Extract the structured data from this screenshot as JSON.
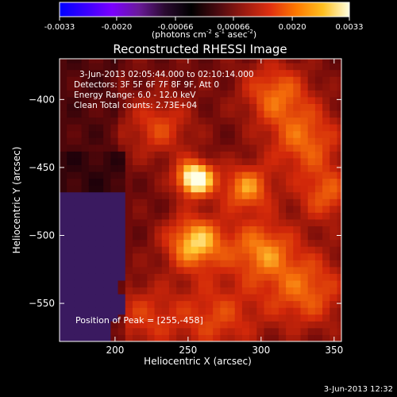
{
  "colorbar": {
    "ticks": [
      "-0.0033",
      "-0.0020",
      "-0.00066",
      "0.00066",
      "0.0020",
      "0.0033"
    ],
    "tick_values": [
      -0.0033,
      -0.002,
      -0.00066,
      0.00066,
      0.002,
      0.0033
    ],
    "units_text": "(photons cm",
    "units_exp1": "-2",
    "units_mid": " s",
    "units_exp2": "-1",
    "units_end": " asec",
    "units_exp3": "-2",
    "units_close": ")",
    "stops": [
      "#0000ff",
      "#3a00ff",
      "#7b00ff",
      "#6a1a9a",
      "#2a0a30",
      "#000000",
      "#4a0a10",
      "#9a1a10",
      "#e03010",
      "#ff7a00",
      "#ffc020",
      "#ffffe0"
    ]
  },
  "chart_data": {
    "type": "heatmap",
    "title": "Reconstructed RHESSI Image",
    "xlabel": "Heliocentric X (arcsec)",
    "ylabel": "Heliocentric Y (arcsec)",
    "xlim": [
      162,
      355
    ],
    "ylim": [
      -578,
      -370
    ],
    "xticks": [
      200,
      250,
      300,
      350
    ],
    "yticks": [
      -550,
      -500,
      -450,
      -400
    ],
    "xtick_labels": [
      "200",
      "250",
      "300",
      "350"
    ],
    "ytick_labels": [
      "−550",
      "−500",
      "−450",
      "−400"
    ],
    "annotations": [
      "3-Jun-2013 02:05:44.000 to 02:10:14.000",
      "Detectors: 3F 5F 6F 7F 8F 9F, Att 0",
      "Energy Range: 6.0 - 12.0 keV",
      "Clean     Total counts: 2.73E+04"
    ],
    "peak_label": "Position of Peak = [255,-458]",
    "peak": [
      255,
      -458
    ],
    "sources": [
      {
        "x": 255,
        "y": -458,
        "sigma": 9,
        "amp": 1.0
      },
      {
        "x": 255,
        "y": -505,
        "sigma": 14,
        "amp": 0.7
      },
      {
        "x": 290,
        "y": -465,
        "sigma": 12,
        "amp": 0.55
      },
      {
        "x": 300,
        "y": -510,
        "sigma": 16,
        "amp": 0.5
      },
      {
        "x": 330,
        "y": -430,
        "sigma": 18,
        "amp": 0.45
      },
      {
        "x": 310,
        "y": -395,
        "sigma": 16,
        "amp": 0.45
      },
      {
        "x": 230,
        "y": -420,
        "sigma": 16,
        "amp": 0.35
      },
      {
        "x": 330,
        "y": -540,
        "sigma": 20,
        "amp": 0.45
      },
      {
        "x": 270,
        "y": -560,
        "sigma": 20,
        "amp": 0.35
      },
      {
        "x": 220,
        "y": -560,
        "sigma": 18,
        "amp": 0.3
      },
      {
        "x": 345,
        "y": -470,
        "sigma": 14,
        "amp": 0.4
      }
    ]
  },
  "footer": {
    "date": "3-Jun-2013 12:32"
  }
}
